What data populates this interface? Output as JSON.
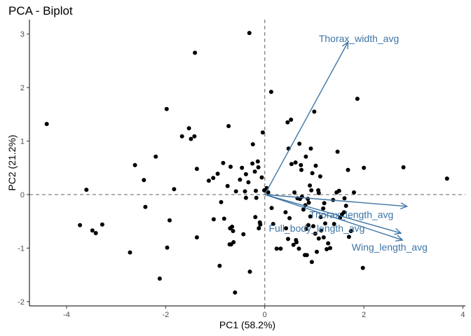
{
  "chart_data": {
    "type": "scatter",
    "title": "PCA - Biplot",
    "xlabel": "PC1 (58.2%)",
    "ylabel": "PC2 (21.2%)",
    "xlim": [
      -4.75,
      4.05
    ],
    "ylim": [
      -2.08,
      3.27
    ],
    "xticks": [
      -4,
      -2,
      0,
      2,
      4
    ],
    "yticks": [
      -2,
      -1,
      0,
      1,
      2,
      3
    ],
    "grid": false,
    "zero_lines": true,
    "point_color": "#000000",
    "arrow_color": "#3e75a6",
    "points": [
      [
        -4.4,
        1.32
      ],
      [
        -3.6,
        0.09
      ],
      [
        -3.73,
        -0.57
      ],
      [
        -3.48,
        -0.67
      ],
      [
        -3.41,
        -0.72
      ],
      [
        -3.28,
        -0.56
      ],
      [
        -2.72,
        -1.08
      ],
      [
        -2.62,
        0.55
      ],
      [
        -2.44,
        0.27
      ],
      [
        -2.41,
        -0.23
      ],
      [
        -2.2,
        0.71
      ],
      [
        -2.12,
        -1.57
      ],
      [
        -1.98,
        1.6
      ],
      [
        -1.97,
        -0.99
      ],
      [
        -1.92,
        -0.48
      ],
      [
        -1.83,
        0.1
      ],
      [
        -1.67,
        1.09
      ],
      [
        -1.53,
        1.24
      ],
      [
        -1.49,
        1.04
      ],
      [
        -1.42,
        1.09
      ],
      [
        -1.41,
        2.65
      ],
      [
        -1.37,
        -0.8
      ],
      [
        -1.37,
        0.48
      ],
      [
        -1.13,
        0.26
      ],
      [
        -1.04,
        0.31
      ],
      [
        -1.03,
        -0.46
      ],
      [
        -0.95,
        0.39
      ],
      [
        -0.91,
        -1.33
      ],
      [
        -0.88,
        -0.14
      ],
      [
        -0.84,
        0.59
      ],
      [
        -0.82,
        -0.45
      ],
      [
        -0.75,
        0.16
      ],
      [
        -0.73,
        1.28
      ],
      [
        -0.71,
        -0.93
      ],
      [
        -0.7,
        -0.63
      ],
      [
        -0.69,
        0.52
      ],
      [
        -0.68,
        -0.93
      ],
      [
        -0.66,
        -0.6
      ],
      [
        -0.64,
        -0.68
      ],
      [
        -0.63,
        -0.89
      ],
      [
        -0.6,
        -1.83
      ],
      [
        -0.58,
        0.06
      ],
      [
        -0.5,
        0.28
      ],
      [
        -0.46,
        0.5
      ],
      [
        -0.43,
        -0.74
      ],
      [
        -0.4,
        0.06
      ],
      [
        -0.38,
        0.38
      ],
      [
        -0.38,
        -0.06
      ],
      [
        -0.33,
        0.23
      ],
      [
        -0.31,
        3.02
      ],
      [
        -0.3,
        -1.44
      ],
      [
        -0.25,
        0.58
      ],
      [
        -0.24,
        0.94
      ],
      [
        -0.2,
        0.43
      ],
      [
        -0.19,
        -0.42
      ],
      [
        -0.18,
        0.07
      ],
      [
        -0.17,
        -0.06
      ],
      [
        -0.14,
        0.62
      ],
      [
        -0.13,
        0.51
      ],
      [
        -0.12,
        -0.63
      ],
      [
        -0.1,
        -0.52
      ],
      [
        -0.09,
        -0.56
      ],
      [
        -0.06,
        0.32
      ],
      [
        -0.04,
        1.16
      ],
      [
        -0.01,
        0.08
      ],
      [
        0.04,
        0.12
      ],
      [
        0.07,
        0.04
      ],
      [
        0.13,
        1.92
      ],
      [
        0.14,
        -0.25
      ],
      [
        0.17,
        -0.55
      ],
      [
        0.24,
        -1.01
      ],
      [
        0.32,
        -1.01
      ],
      [
        0.42,
        -0.33
      ],
      [
        0.43,
        -0.63
      ],
      [
        0.46,
        1.35
      ],
      [
        0.47,
        -0.83
      ],
      [
        0.48,
        0.86
      ],
      [
        0.5,
        -0.44
      ],
      [
        0.53,
        1.4
      ],
      [
        0.54,
        0.57
      ],
      [
        0.58,
        -0.94
      ],
      [
        0.6,
        0.04
      ],
      [
        0.62,
        0.6
      ],
      [
        0.63,
        -0.85
      ],
      [
        0.64,
        -0.89
      ],
      [
        0.66,
        -0.07
      ],
      [
        0.69,
        -1.01
      ],
      [
        0.7,
        0.95
      ],
      [
        0.71,
        -0.08
      ],
      [
        0.73,
        0.55
      ],
      [
        0.74,
        0.46
      ],
      [
        0.75,
        -0.04
      ],
      [
        0.78,
        -0.28
      ],
      [
        0.81,
        -1.13
      ],
      [
        0.82,
        -0.2
      ],
      [
        0.83,
        0.71
      ],
      [
        0.84,
        -0.64
      ],
      [
        0.85,
        -1.13
      ],
      [
        0.87,
        -0.08
      ],
      [
        0.88,
        -0.57
      ],
      [
        0.89,
        -0.15
      ],
      [
        0.91,
        0.17
      ],
      [
        0.92,
        -0.41
      ],
      [
        0.93,
        0.86
      ],
      [
        0.94,
        0.08
      ],
      [
        0.95,
        -1.26
      ],
      [
        0.96,
        0.4
      ],
      [
        0.98,
        -0.59
      ],
      [
        1.0,
        1.55
      ],
      [
        1.02,
        -0.73
      ],
      [
        1.03,
        0.54
      ],
      [
        1.05,
        -1.07
      ],
      [
        1.08,
        0.08
      ],
      [
        1.09,
        0.03
      ],
      [
        1.09,
        -0.82
      ],
      [
        1.12,
        0.34
      ],
      [
        1.13,
        -0.42
      ],
      [
        1.14,
        -0.67
      ],
      [
        1.18,
        -0.26
      ],
      [
        1.19,
        -0.8
      ],
      [
        1.2,
        -0.16
      ],
      [
        1.22,
        -0.54
      ],
      [
        1.25,
        -1.02
      ],
      [
        1.28,
        -0.91
      ],
      [
        1.32,
        -1.0
      ],
      [
        1.38,
        -0.1
      ],
      [
        1.4,
        -0.55
      ],
      [
        1.45,
        0.04
      ],
      [
        1.47,
        0.8
      ],
      [
        1.5,
        0.07
      ],
      [
        1.52,
        -0.43
      ],
      [
        1.56,
        -0.37
      ],
      [
        1.6,
        -0.33
      ],
      [
        1.61,
        -0.07
      ],
      [
        1.64,
        -0.21
      ],
      [
        1.68,
        0.46
      ],
      [
        1.7,
        -0.79
      ],
      [
        1.74,
        -0.68
      ],
      [
        1.8,
        0.04
      ],
      [
        1.87,
        1.79
      ],
      [
        1.98,
        -1.37
      ],
      [
        2.0,
        0.5
      ],
      [
        2.8,
        0.51
      ],
      [
        3.68,
        0.3
      ]
    ],
    "arrows": [
      {
        "name": "Thorax_width_avg",
        "x": 1.68,
        "y": 2.85
      },
      {
        "name": "Thorax_length_avg",
        "x": 2.87,
        "y": -0.22
      },
      {
        "name": "Full_body_length_avg",
        "x": 2.75,
        "y": -0.72
      },
      {
        "name": "Wing_length_avg",
        "x": 2.78,
        "y": -0.85
      }
    ],
    "arrow_labels": [
      {
        "name": "Thorax_width_avg",
        "x": 1.9,
        "y": 2.92
      },
      {
        "name": "Thorax_length_avg",
        "x": 1.75,
        "y": -0.37
      },
      {
        "name": "Full_body_length_avg",
        "x": 1.05,
        "y": -0.63
      },
      {
        "name": "Wing_length_avg",
        "x": 2.52,
        "y": -0.98
      }
    ]
  }
}
